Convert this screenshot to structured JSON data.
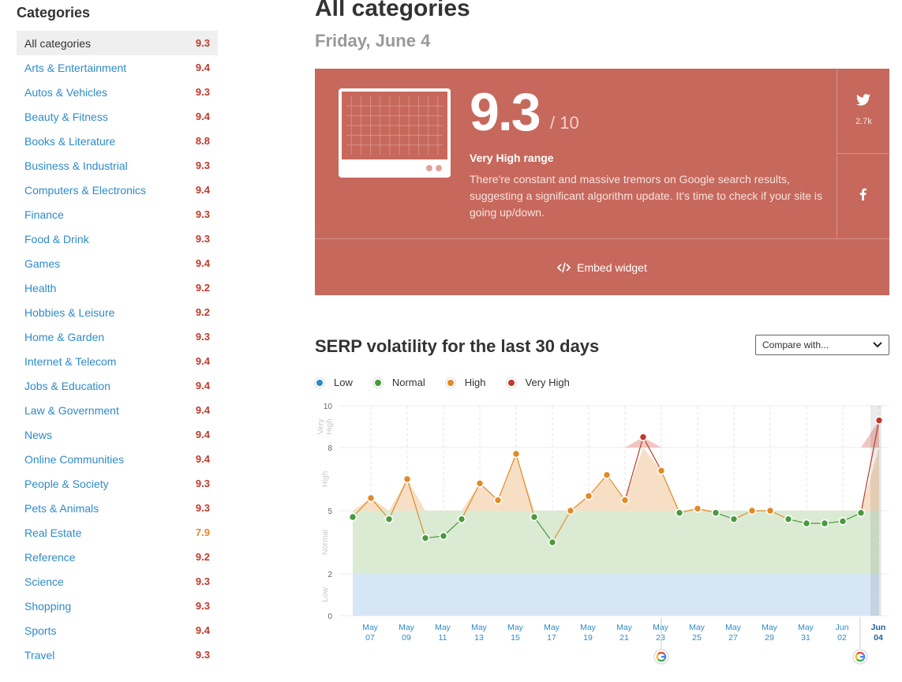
{
  "sidebar": {
    "title": "Categories",
    "items": [
      {
        "name": "All categories",
        "score": "9.3",
        "active": true
      },
      {
        "name": "Arts & Entertainment",
        "score": "9.4"
      },
      {
        "name": "Autos & Vehicles",
        "score": "9.3"
      },
      {
        "name": "Beauty & Fitness",
        "score": "9.4"
      },
      {
        "name": "Books & Literature",
        "score": "8.8"
      },
      {
        "name": "Business & Industrial",
        "score": "9.3"
      },
      {
        "name": "Computers & Electronics",
        "score": "9.4"
      },
      {
        "name": "Finance",
        "score": "9.3"
      },
      {
        "name": "Food & Drink",
        "score": "9.3"
      },
      {
        "name": "Games",
        "score": "9.4"
      },
      {
        "name": "Health",
        "score": "9.2"
      },
      {
        "name": "Hobbies & Leisure",
        "score": "9.2"
      },
      {
        "name": "Home & Garden",
        "score": "9.3"
      },
      {
        "name": "Internet & Telecom",
        "score": "9.4"
      },
      {
        "name": "Jobs & Education",
        "score": "9.4"
      },
      {
        "name": "Law & Government",
        "score": "9.4"
      },
      {
        "name": "News",
        "score": "9.4"
      },
      {
        "name": "Online Communities",
        "score": "9.4"
      },
      {
        "name": "People & Society",
        "score": "9.3"
      },
      {
        "name": "Pets & Animals",
        "score": "9.3"
      },
      {
        "name": "Real Estate",
        "score": "7.9"
      },
      {
        "name": "Reference",
        "score": "9.2"
      },
      {
        "name": "Science",
        "score": "9.3"
      },
      {
        "name": "Shopping",
        "score": "9.3"
      },
      {
        "name": "Sports",
        "score": "9.4"
      },
      {
        "name": "Travel",
        "score": "9.3"
      }
    ]
  },
  "main": {
    "title": "All categories",
    "date": "Friday, June 4"
  },
  "score_card": {
    "score": "9.3",
    "max": "/ 10",
    "range_label": "Very High range",
    "description": "There're constant and massive tremors on Google search results, suggesting a significant algorithm update. It's time to check if your site is going up/down.",
    "twitter_count": "2.7k",
    "embed_label": "Embed widget",
    "bg_color": "#c7685c"
  },
  "chart_section": {
    "title": "SERP volatility for the last 30 days",
    "compare_placeholder": "Compare with...",
    "legend": [
      {
        "label": "Low",
        "color": "#2e8bc9"
      },
      {
        "label": "Normal",
        "color": "#4a9a3d"
      },
      {
        "label": "High",
        "color": "#e08b26"
      },
      {
        "label": "Very High",
        "color": "#c0392b"
      }
    ]
  },
  "colors": {
    "very_high": "#c0392b",
    "high": "#e08b26",
    "normal": "#4a9a3d",
    "low": "#2e8bc9",
    "link": "#2e8bc9"
  },
  "chart_data": {
    "type": "line",
    "y_ticks": [
      "0",
      "2",
      "5",
      "8",
      "10"
    ],
    "ylim": [
      0,
      10
    ],
    "bands": [
      {
        "label": "Low",
        "from": 0,
        "to": 2
      },
      {
        "label": "Normal",
        "from": 2,
        "to": 5
      },
      {
        "label": "High",
        "from": 5,
        "to": 8
      },
      {
        "label": "Very High",
        "from": 8,
        "to": 10
      }
    ],
    "x_labels": [
      {
        "month": "May",
        "day": "07",
        "index": 1
      },
      {
        "month": "May",
        "day": "09",
        "index": 3
      },
      {
        "month": "May",
        "day": "11",
        "index": 5
      },
      {
        "month": "May",
        "day": "13",
        "index": 7
      },
      {
        "month": "May",
        "day": "15",
        "index": 9
      },
      {
        "month": "May",
        "day": "17",
        "index": 11
      },
      {
        "month": "May",
        "day": "19",
        "index": 13
      },
      {
        "month": "May",
        "day": "21",
        "index": 15
      },
      {
        "month": "May",
        "day": "23",
        "index": 17
      },
      {
        "month": "May",
        "day": "25",
        "index": 19
      },
      {
        "month": "May",
        "day": "27",
        "index": 21
      },
      {
        "month": "May",
        "day": "29",
        "index": 23
      },
      {
        "month": "May",
        "day": "31",
        "index": 25
      },
      {
        "month": "Jun",
        "day": "02",
        "index": 27
      },
      {
        "month": "Jun",
        "day": "04",
        "index": 29
      }
    ],
    "dates": [
      "May 06",
      "May 07",
      "May 08",
      "May 09",
      "May 10",
      "May 11",
      "May 12",
      "May 13",
      "May 14",
      "May 15",
      "May 16",
      "May 17",
      "May 18",
      "May 19",
      "May 20",
      "May 21",
      "May 22",
      "May 23",
      "May 24",
      "May 25",
      "May 26",
      "May 27",
      "May 28",
      "May 29",
      "May 30",
      "May 31",
      "Jun 01",
      "Jun 02",
      "Jun 03",
      "Jun 04"
    ],
    "values": [
      4.7,
      5.6,
      4.6,
      6.5,
      3.7,
      3.8,
      4.6,
      6.3,
      5.5,
      7.7,
      4.7,
      3.5,
      5.0,
      5.7,
      6.7,
      5.5,
      8.5,
      6.9,
      4.9,
      5.1,
      4.9,
      4.6,
      5.0,
      5.0,
      4.6,
      4.4,
      4.4,
      4.5,
      4.9,
      9.3
    ],
    "google_update_markers": [
      "May 23",
      "Jun 04"
    ]
  }
}
